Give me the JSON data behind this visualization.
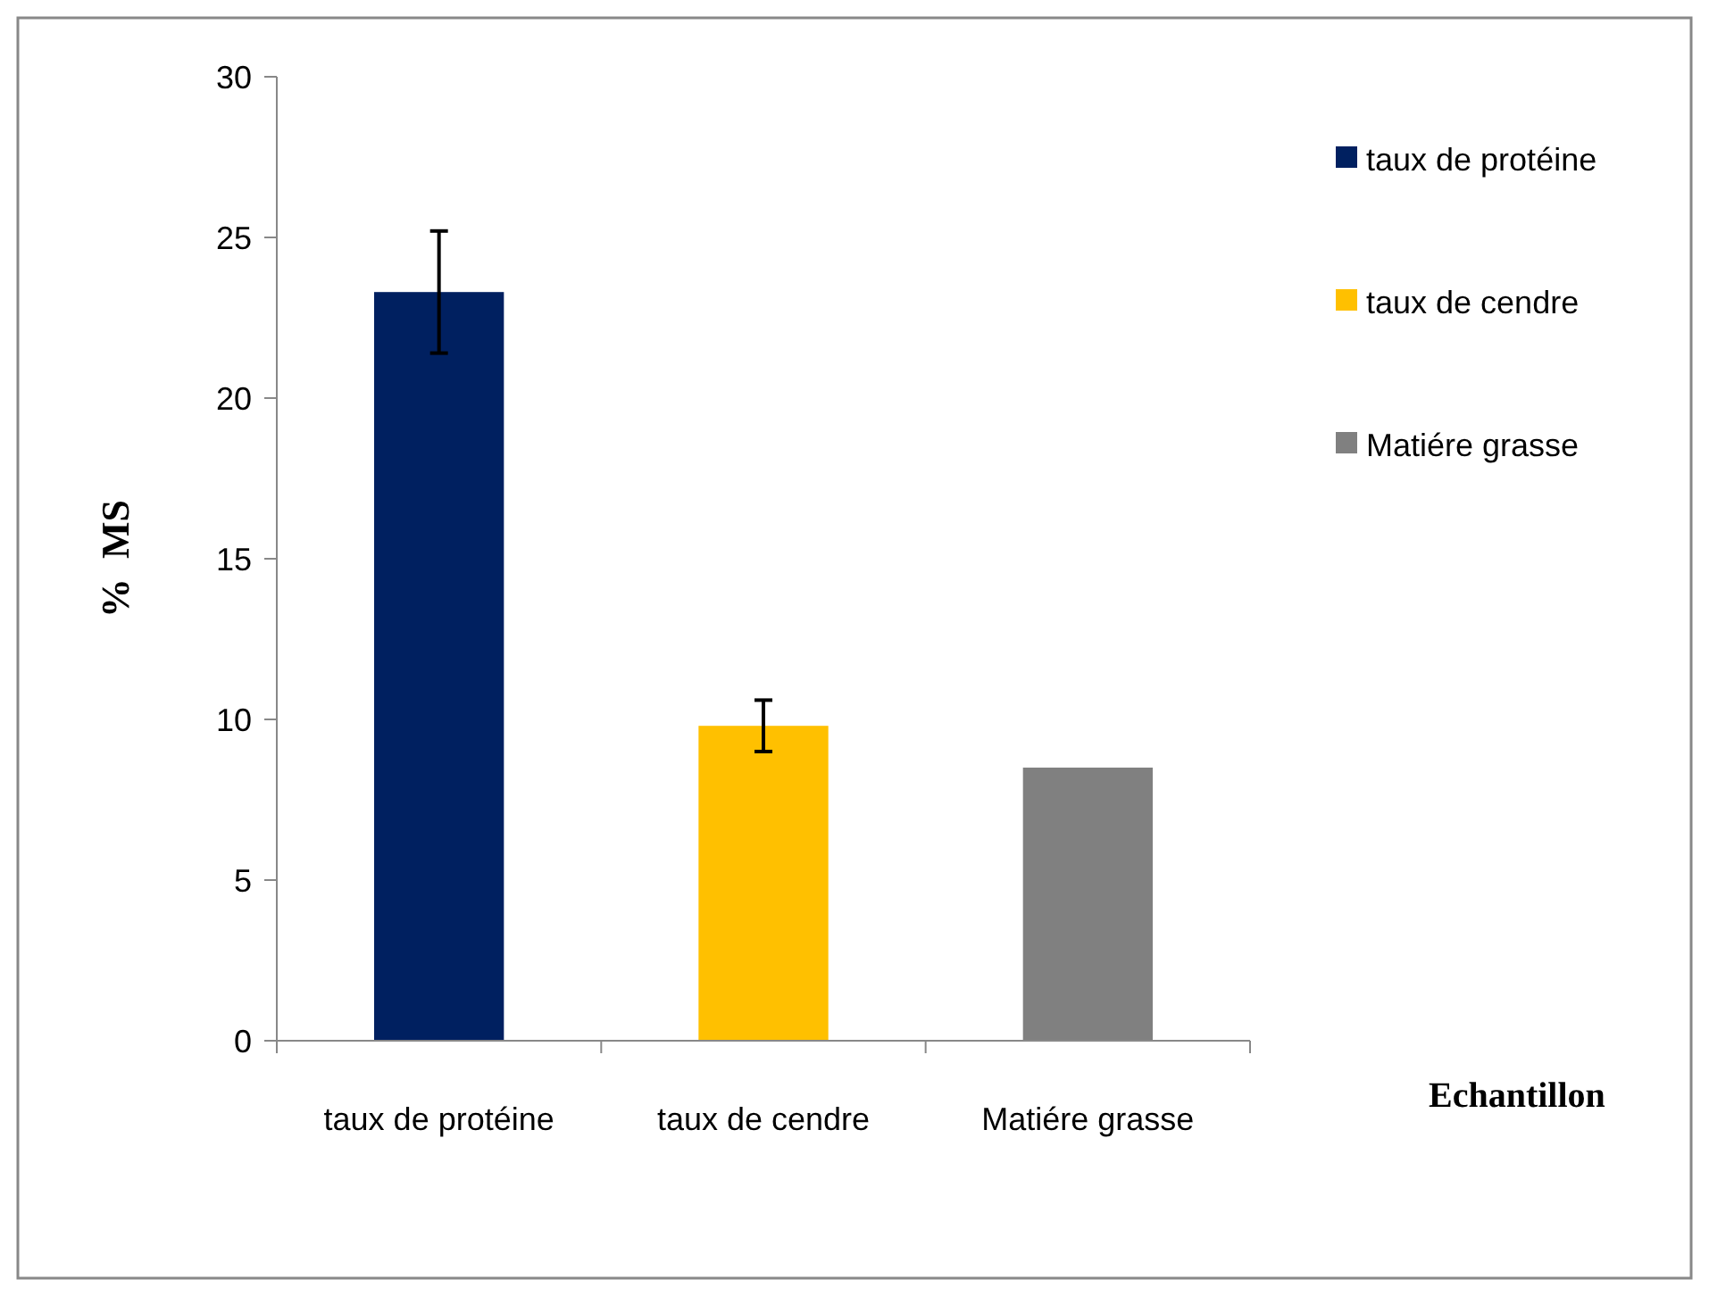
{
  "chart_data": {
    "type": "bar",
    "xlabel": "Echantillon",
    "ylabel": "%  MS",
    "categories": [
      "taux de protéine",
      "taux de cendre",
      "Matiére grasse"
    ],
    "series": [
      {
        "name": "taux de protéine",
        "color": "#002060",
        "values": [
          23.3,
          null,
          null
        ],
        "errors": [
          [
            21.4,
            25.2
          ],
          null,
          null
        ]
      },
      {
        "name": "taux de cendre",
        "color": "#ffc000",
        "values": [
          null,
          9.8,
          null
        ],
        "errors": [
          null,
          [
            9.0,
            10.6
          ],
          null
        ]
      },
      {
        "name": "Matiére grasse",
        "color": "#808080",
        "values": [
          null,
          null,
          8.5
        ]
      }
    ],
    "ylim": [
      0,
      30
    ],
    "yticks": [
      0,
      5,
      10,
      15,
      20,
      25,
      30
    ],
    "grid": false,
    "legend": "top right"
  }
}
